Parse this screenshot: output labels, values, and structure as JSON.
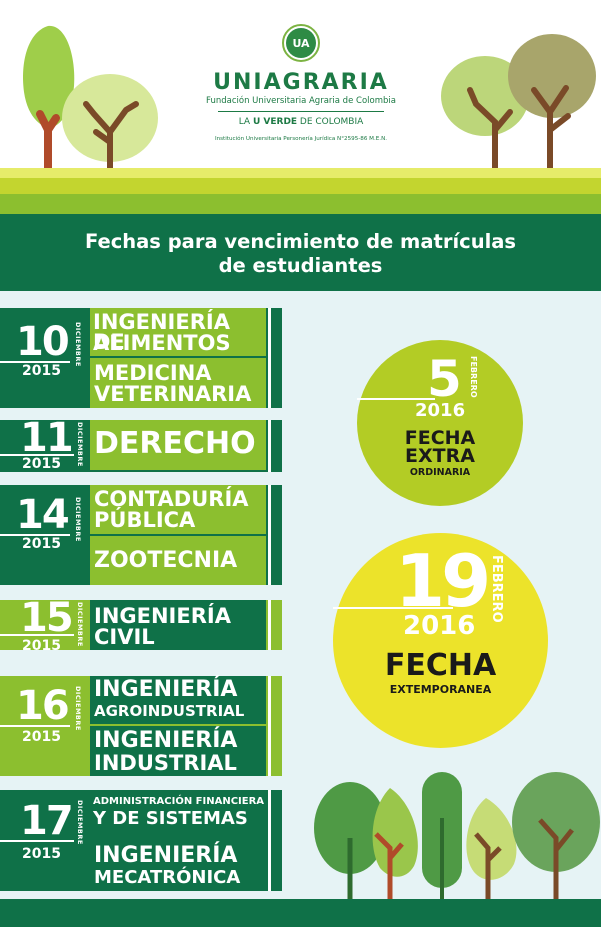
{
  "logo": {
    "mark": "UA",
    "brand": "UNIAGRARIA",
    "subtitle": "Fundación Universitaria Agraria de Colombia",
    "slogan_a": "LA ",
    "slogan_b": "U VERDE",
    "slogan_c": " DE COLOMBIA",
    "legal": "Institución Universitaria Personería Jurídica N°2595-86 M.E.N."
  },
  "title": {
    "line1": "Fechas para vencimiento de matrículas",
    "line2": "de estudiantes"
  },
  "rows": [
    {
      "day": "10",
      "month": "DICIEMBRE",
      "year": "2015",
      "programs": [
        [
          "INGENIERÍA DE",
          "ALIMENTOS"
        ],
        [
          "MEDICINA",
          "VETERINARIA"
        ]
      ]
    },
    {
      "day": "11",
      "month": "DICIEMBRE",
      "year": "2015",
      "programs": [
        [
          "DERECHO"
        ]
      ]
    },
    {
      "day": "14",
      "month": "DICIEMBRE",
      "year": "2015",
      "programs": [
        [
          "CONTADURÍA",
          "PÚBLICA"
        ],
        [
          "ZOOTECNIA"
        ]
      ]
    },
    {
      "day": "15",
      "month": "DICIEMBRE",
      "year": "2015",
      "programs": [
        [
          "INGENIERÍA",
          "CIVIL"
        ]
      ]
    },
    {
      "day": "16",
      "month": "DICIEMBRE",
      "year": "2015",
      "programs": [
        [
          "INGENIERÍA",
          "AGROINDUSTRIAL"
        ],
        [
          "INGENIERÍA",
          "INDUSTRIAL"
        ]
      ]
    },
    {
      "day": "17",
      "month": "DICIEMBRE",
      "year": "2015",
      "programs": [
        [
          "ADMINISTRACIÓN FINANCIERA",
          "Y DE SISTEMAS"
        ],
        [
          "INGENIERÍA",
          "MECATRÓNICA"
        ]
      ]
    }
  ],
  "extra": {
    "day": "5",
    "month": "FEBRERO",
    "year": "2016",
    "label1": "FECHA",
    "label2": "EXTRA",
    "label3": "ORDINARIA"
  },
  "extemp": {
    "day": "19",
    "month": "FEBRERO",
    "year": "2016",
    "label1": "FECHA",
    "label2": "EXTEMPORANEA"
  },
  "colors": {
    "dark_green": "#0f7148",
    "light_green": "#8cbf2f",
    "lime": "#b3cc25",
    "yellow": "#ece32a"
  }
}
